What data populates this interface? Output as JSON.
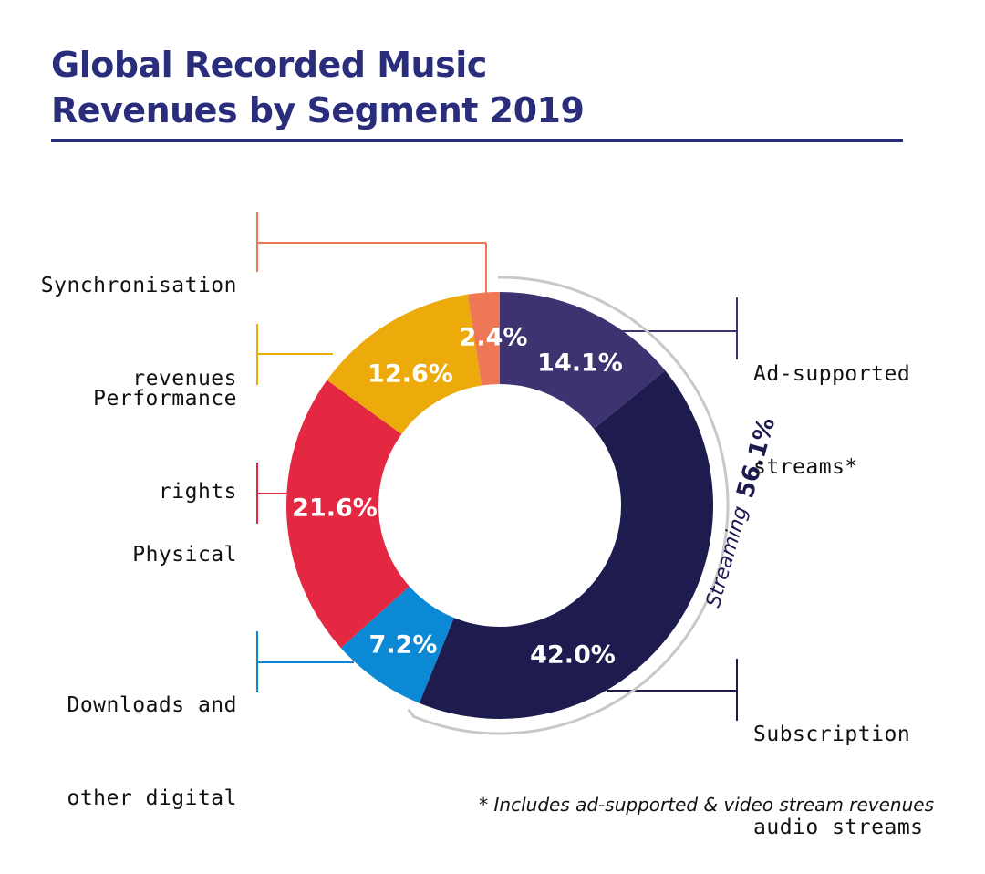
{
  "title_line1": "Global Recorded Music",
  "title_line2": "Revenues by Segment 2019",
  "footnote": "* Includes ad-supported & video stream revenues",
  "chart_data": {
    "type": "pie",
    "title": "Global Recorded Music Revenues by Segment 2019",
    "style": "donut",
    "segments": [
      {
        "key": "ad",
        "label_line1": "Ad-supported",
        "label_line2": "streams*",
        "value": 14.1,
        "value_label": "14.1%",
        "color": "#3d3370"
      },
      {
        "key": "sub",
        "label_line1": "Subscription",
        "label_line2": "audio streams",
        "value": 42.0,
        "value_label": "42.0%",
        "color": "#1e1b4f"
      },
      {
        "key": "dl",
        "label_line1": "Downloads and",
        "label_line2": "other digital",
        "value": 7.2,
        "value_label": "7.2%",
        "color": "#0b89d4"
      },
      {
        "key": "phys",
        "label_line1": "Physical",
        "label_line2": "",
        "value": 21.6,
        "value_label": "21.6%",
        "color": "#e42841"
      },
      {
        "key": "perf",
        "label_line1": "Performance",
        "label_line2": "rights",
        "value": 12.6,
        "value_label": "12.6%",
        "color": "#edab0b"
      },
      {
        "key": "sync",
        "label_line1": "Synchronisation",
        "label_line2": "revenues",
        "value": 2.4,
        "value_label": "2.4%",
        "color": "#ee7755"
      }
    ],
    "group": {
      "label": "Streaming",
      "value_label": "56.1%",
      "value": 56.1,
      "members": [
        "ad",
        "sub"
      ]
    }
  }
}
